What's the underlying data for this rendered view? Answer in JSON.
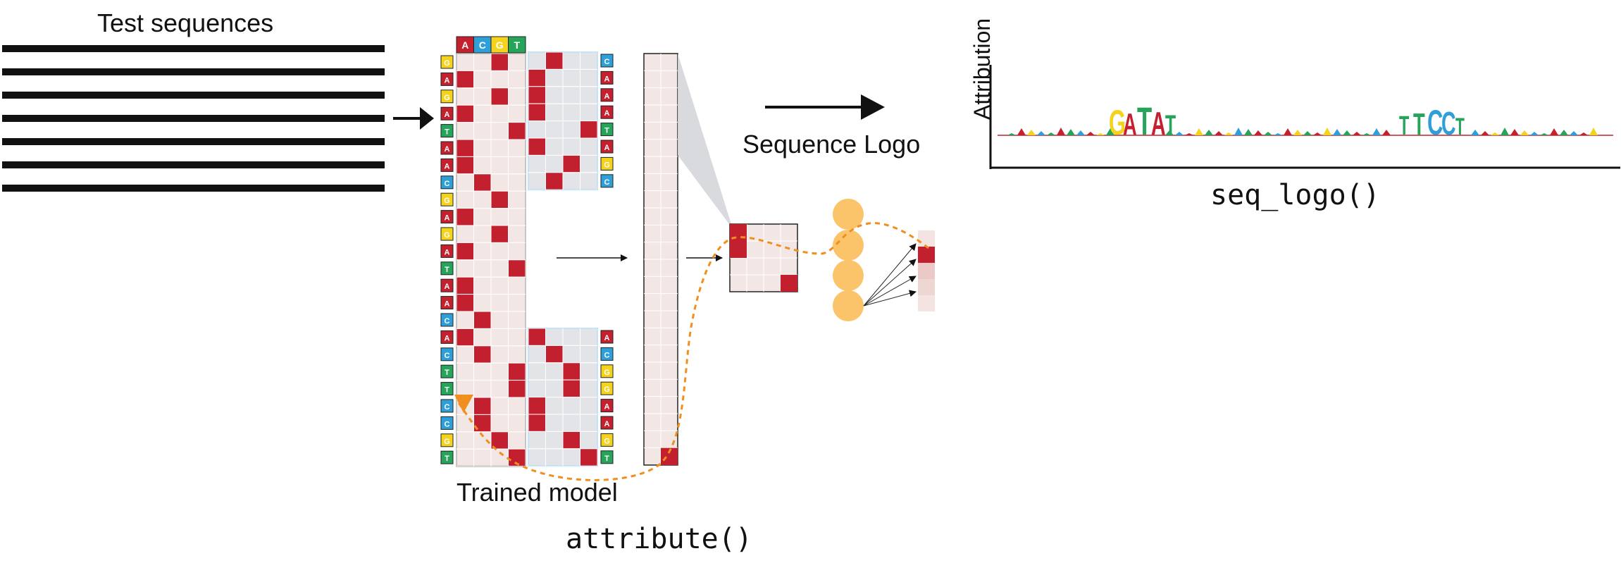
{
  "texts": {
    "test_sequences": "Test sequences",
    "trained_model": "Trained model",
    "attribute_fn": "attribute()",
    "sequence_logo": "Sequence Logo",
    "seq_logo_fn": "seq_logo()",
    "attribution_axis": "Attribution"
  },
  "header_bases": [
    "A",
    "C",
    "G",
    "T"
  ],
  "sequence": [
    "G",
    "A",
    "G",
    "A",
    "T",
    "A",
    "A",
    "C",
    "G",
    "A",
    "G",
    "A",
    "T",
    "A",
    "A",
    "C",
    "A",
    "C",
    "T",
    "T",
    "C",
    "C",
    "G",
    "T"
  ],
  "right_labels_top": [
    "C",
    "A",
    "A",
    "A",
    "T",
    "A",
    "G",
    "C"
  ],
  "right_labels_bottom": [
    "A",
    "C",
    "G",
    "G",
    "A",
    "A",
    "G",
    "T"
  ],
  "logo_letters": {
    "motif_1": [
      "G",
      "A",
      "T",
      "A",
      "T"
    ],
    "motif_2": [
      "T",
      "T",
      "C",
      "C",
      "T"
    ]
  },
  "colors": {
    "A": "#c4202e",
    "C": "#2e9fd8",
    "G": "#f5d21c",
    "T": "#26a45a",
    "onehot_fill": "#c2202f",
    "cell_bg": "#f3e7e5",
    "filter_bg": "#e2e4e8",
    "filter_border": "#8ec4e8",
    "neuron": "#fcc46a",
    "path": "#f08e1e"
  }
}
